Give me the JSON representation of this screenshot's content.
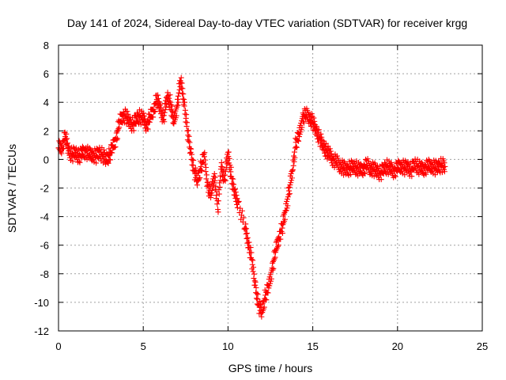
{
  "chart_data": {
    "type": "scatter",
    "title": "Day 141 of 2024, Sidereal Day-to-day VTEC variation (SDTVAR) for receiver krgg",
    "xlabel": "GPS time / hours",
    "ylabel": "SDTVAR / TECUs",
    "xlim": [
      0,
      25
    ],
    "ylim": [
      -12,
      8
    ],
    "x_ticks": [
      "0",
      "5",
      "10",
      "15",
      "20",
      "25"
    ],
    "y_ticks": [
      "8",
      "6",
      "4",
      "2",
      "0",
      "-2",
      "-4",
      "-6",
      "-8",
      "-10",
      "-12"
    ],
    "grid": true,
    "marker": "+",
    "series": [
      {
        "name": "SDTVAR",
        "color": "#ff0000",
        "x": [
          0.0,
          0.2,
          0.4,
          0.6,
          0.8,
          1.0,
          1.2,
          1.4,
          1.6,
          1.8,
          2.0,
          2.2,
          2.4,
          2.6,
          2.8,
          3.0,
          3.2,
          3.4,
          3.6,
          3.8,
          4.0,
          4.2,
          4.4,
          4.6,
          4.8,
          5.0,
          5.2,
          5.4,
          5.6,
          5.8,
          6.0,
          6.2,
          6.4,
          6.6,
          6.8,
          7.0,
          7.2,
          7.4,
          7.6,
          7.8,
          8.0,
          8.2,
          8.4,
          8.6,
          8.8,
          9.0,
          9.2,
          9.4,
          9.6,
          9.8,
          10.0,
          10.2,
          10.4,
          10.6,
          11.0,
          11.2,
          11.4,
          11.6,
          11.8,
          12.0,
          12.2,
          12.4,
          12.6,
          12.8,
          13.0,
          13.2,
          13.4,
          13.6,
          13.8,
          14.0,
          14.2,
          14.4,
          14.6,
          14.8,
          15.0,
          15.2,
          15.4,
          15.6,
          15.8,
          16.0,
          16.2,
          16.4,
          16.6,
          16.8,
          17.0,
          17.2,
          17.4,
          17.6,
          17.8,
          18.0,
          18.2,
          18.4,
          18.6,
          18.8,
          19.0,
          19.2,
          19.4,
          19.6,
          19.8,
          20.0,
          20.2,
          20.4,
          20.6,
          20.8,
          21.0,
          21.2,
          21.4,
          21.6,
          21.8,
          22.0,
          22.2,
          22.4,
          22.6,
          22.8
        ],
        "y": [
          0.8,
          0.9,
          1.6,
          0.6,
          0.3,
          0.5,
          0.2,
          0.4,
          0.6,
          0.3,
          0.4,
          0.2,
          0.5,
          0.3,
          0.0,
          0.3,
          0.8,
          1.5,
          2.6,
          3.1,
          3.0,
          2.6,
          2.4,
          2.9,
          3.0,
          2.8,
          2.4,
          2.9,
          3.5,
          4.2,
          3.6,
          2.8,
          4.4,
          4.0,
          2.5,
          3.8,
          5.5,
          4.2,
          2.0,
          0.5,
          -0.8,
          -1.5,
          -0.5,
          0.2,
          -1.8,
          -2.5,
          -1.0,
          -3.5,
          -0.5,
          -1.4,
          0.5,
          -1.2,
          -2.5,
          -3.0,
          -4.8,
          -5.8,
          -7.0,
          -8.8,
          -10.2,
          -10.7,
          -9.5,
          -9.0,
          -7.6,
          -6.5,
          -5.4,
          -4.8,
          -3.6,
          -2.2,
          -0.8,
          1.2,
          1.6,
          3.0,
          3.1,
          3.0,
          2.6,
          2.0,
          1.5,
          1.0,
          0.6,
          0.3,
          0.0,
          -0.2,
          -0.4,
          -0.6,
          -0.7,
          -0.6,
          -0.5,
          -0.6,
          -0.8,
          -0.6,
          -0.4,
          -0.6,
          -0.7,
          -0.8,
          -1.0,
          -0.6,
          -0.5,
          -0.7,
          -0.8,
          -0.6,
          -0.4,
          -0.6,
          -0.5,
          -0.8,
          -0.3,
          -0.5,
          -0.7,
          -0.6,
          -0.5,
          -0.4,
          -0.6,
          -0.5,
          -0.4,
          -0.5
        ]
      }
    ]
  }
}
